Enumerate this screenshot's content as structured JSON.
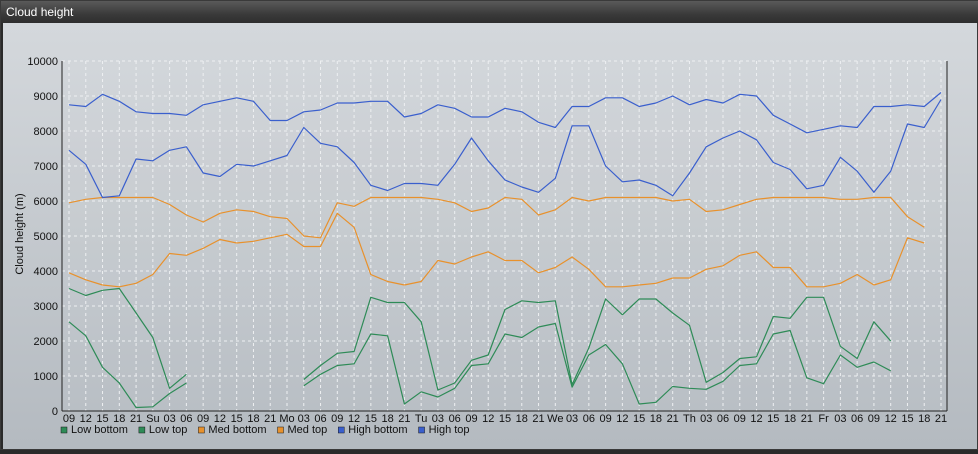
{
  "window": {
    "title": "Cloud height"
  },
  "chart_data": {
    "type": "line",
    "ylabel": "Cloud height (m)",
    "xlabel": "",
    "ylim": [
      0,
      10000
    ],
    "yticks": [
      0,
      1000,
      2000,
      3000,
      4000,
      5000,
      6000,
      7000,
      8000,
      9000,
      10000
    ],
    "grid": true,
    "legend_position": "bottom-left",
    "x_tick_labels": [
      "09",
      "12",
      "15",
      "18",
      "21",
      "Su",
      "03",
      "06",
      "09",
      "12",
      "15",
      "18",
      "21",
      "Mo",
      "03",
      "06",
      "09",
      "12",
      "15",
      "18",
      "21",
      "Tu",
      "03",
      "06",
      "09",
      "12",
      "15",
      "18",
      "21",
      "We",
      "03",
      "06",
      "09",
      "12",
      "15",
      "18",
      "21",
      "Th",
      "03",
      "06",
      "09",
      "12",
      "15",
      "18",
      "21",
      "Fr",
      "03",
      "06",
      "09",
      "12",
      "15",
      "18",
      "21"
    ],
    "series": [
      {
        "name": "Low bottom",
        "color": "#2e8b57",
        "values": [
          2550,
          2150,
          1250,
          800,
          100,
          120,
          500,
          800,
          null,
          null,
          null,
          null,
          null,
          null,
          720,
          1050,
          1300,
          1350,
          2200,
          2150,
          200,
          550,
          400,
          650,
          1300,
          1350,
          2200,
          2100,
          2400,
          2500,
          680,
          1600,
          1900,
          1350,
          200,
          250,
          700,
          650,
          620,
          850,
          1300,
          1350,
          2200,
          2300,
          950,
          780,
          1600,
          1250,
          1400,
          1150,
          null,
          null,
          null
        ]
      },
      {
        "name": "Low top",
        "color": "#2e8b57",
        "values": [
          3500,
          3300,
          3450,
          3500,
          2800,
          2100,
          650,
          1050,
          null,
          null,
          null,
          null,
          null,
          null,
          900,
          1300,
          1650,
          1700,
          3250,
          3100,
          3100,
          2550,
          600,
          800,
          1450,
          1600,
          2900,
          3150,
          3100,
          3150,
          750,
          1800,
          3200,
          2750,
          3200,
          3200,
          2800,
          2450,
          820,
          1100,
          1500,
          1550,
          2700,
          2650,
          3250,
          3250,
          1850,
          1500,
          2550,
          2000,
          null,
          null,
          null
        ]
      },
      {
        "name": "Med bottom",
        "color": "#e8912c",
        "values": [
          3950,
          3750,
          3600,
          3550,
          3650,
          3900,
          4500,
          4450,
          4650,
          4900,
          4800,
          4850,
          4950,
          5050,
          4700,
          4700,
          5650,
          5250,
          3900,
          3700,
          3600,
          3700,
          4300,
          4200,
          4400,
          4550,
          4300,
          4300,
          3950,
          4100,
          4400,
          4050,
          3550,
          3550,
          3600,
          3650,
          3800,
          3800,
          4050,
          4150,
          4450,
          4550,
          4100,
          4100,
          3550,
          3550,
          3650,
          3900,
          3600,
          3750,
          4950,
          4800,
          null
        ]
      },
      {
        "name": "Med top",
        "color": "#e8912c",
        "values": [
          5950,
          6050,
          6100,
          6100,
          6100,
          6100,
          5900,
          5600,
          5400,
          5650,
          5750,
          5700,
          5550,
          5500,
          5000,
          4950,
          5950,
          5850,
          6100,
          6100,
          6100,
          6100,
          6050,
          5950,
          5700,
          5800,
          6100,
          6050,
          5600,
          5750,
          6100,
          6000,
          6100,
          6100,
          6100,
          6100,
          6000,
          6050,
          5700,
          5750,
          5900,
          6050,
          6100,
          6100,
          6100,
          6100,
          6050,
          6050,
          6100,
          6100,
          5550,
          5250,
          null
        ]
      },
      {
        "name": "High bottom",
        "color": "#3a5fcd",
        "values": [
          7450,
          7050,
          6100,
          6150,
          7200,
          7150,
          7450,
          7550,
          6800,
          6700,
          7050,
          7000,
          7150,
          7300,
          8100,
          7650,
          7550,
          7100,
          6450,
          6300,
          6500,
          6500,
          6450,
          7050,
          7800,
          7150,
          6600,
          6400,
          6250,
          6650,
          8150,
          8150,
          7000,
          6550,
          6600,
          6450,
          6150,
          6800,
          7550,
          7800,
          8000,
          7750,
          7100,
          6900,
          6350,
          6450,
          7250,
          6850,
          6250,
          6850,
          8200,
          8100,
          8900
        ]
      },
      {
        "name": "High top",
        "color": "#3a5fcd",
        "values": [
          8750,
          8700,
          9050,
          8850,
          8550,
          8500,
          8500,
          8450,
          8750,
          8850,
          8950,
          8850,
          8300,
          8300,
          8550,
          8600,
          8800,
          8800,
          8850,
          8850,
          8400,
          8500,
          8750,
          8650,
          8400,
          8400,
          8650,
          8550,
          8250,
          8100,
          8700,
          8700,
          8950,
          8950,
          8700,
          8800,
          9000,
          8750,
          8900,
          8800,
          9050,
          9000,
          8450,
          8200,
          7950,
          8050,
          8150,
          8100,
          8700,
          8700,
          8750,
          8700,
          9100
        ]
      }
    ]
  }
}
